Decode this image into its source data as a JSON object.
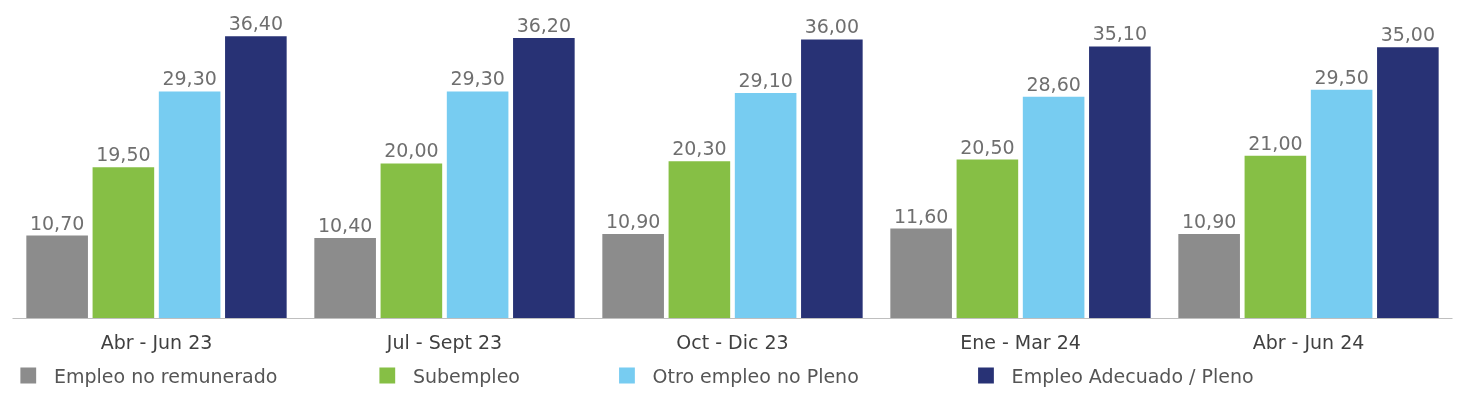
{
  "chart_data": {
    "type": "bar",
    "categories": [
      "Abr - Jun 23",
      "Jul - Sept 23",
      "Oct - Dic 23",
      "Ene - Mar 24",
      "Abr - Jun 24"
    ],
    "tick_labels": "x",
    "grid": false,
    "legend": "bottom",
    "series": [
      {
        "name": "Empleo no remunerado",
        "color": "#8c8c8c",
        "values": [
          10.7,
          10.4,
          10.9,
          11.6,
          10.9
        ],
        "value_labels": [
          "10,70",
          "10,40",
          "10,90",
          "11,60",
          "10,90"
        ]
      },
      {
        "name": "Subempleo",
        "color": "#86bf45",
        "values": [
          19.5,
          20.0,
          20.3,
          20.5,
          21.0
        ],
        "value_labels": [
          "19,50",
          "20,00",
          "20,30",
          "20,50",
          "21,00"
        ]
      },
      {
        "name": "Otro empleo no Pleno",
        "color": "#77ccf1",
        "values": [
          29.3,
          29.3,
          29.1,
          28.6,
          29.5
        ],
        "value_labels": [
          "29,30",
          "29,30",
          "29,10",
          "28,60",
          "29,50"
        ]
      },
      {
        "name": "Empleo Adecuado / Pleno",
        "color": "#283275",
        "values": [
          36.4,
          36.2,
          36.0,
          35.1,
          35.0
        ],
        "value_labels": [
          "36,40",
          "36,20",
          "36,00",
          "35,10",
          "35,00"
        ]
      }
    ]
  }
}
